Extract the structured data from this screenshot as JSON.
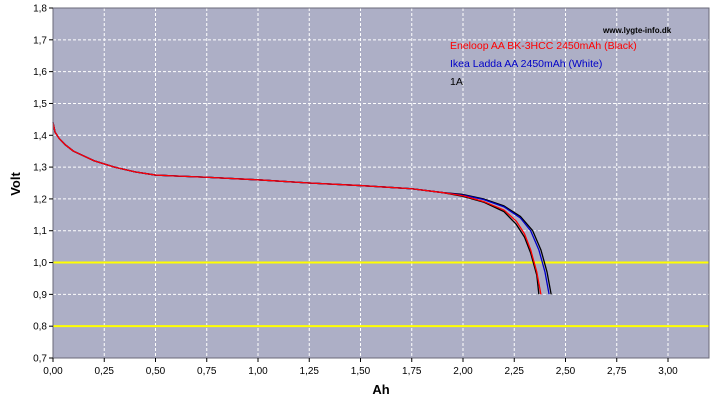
{
  "chart_data": {
    "type": "line",
    "title": "",
    "xlabel": "Ah",
    "ylabel": "Volt",
    "xlim": [
      0,
      3.2
    ],
    "ylim": [
      0.7,
      1.8
    ],
    "x_ticks": [
      "0,00",
      "0,25",
      "0,50",
      "0,75",
      "1,00",
      "1,25",
      "1,50",
      "1,75",
      "2,00",
      "2,25",
      "2,50",
      "2,75",
      "3,00"
    ],
    "y_ticks": [
      "0,7",
      "0,8",
      "0,9",
      "1,0",
      "1,1",
      "1,2",
      "1,3",
      "1,4",
      "1,5",
      "1,6",
      "1,7",
      "1,8"
    ],
    "grid": true,
    "background_color": "#adafc6",
    "grid_color": "#ffffff",
    "reference_lines": [
      {
        "y": 1.0,
        "color": "#ffff00"
      },
      {
        "y": 0.8,
        "color": "#ffff00"
      }
    ],
    "annotations": [
      "www.lygte-info.dk",
      "1A"
    ],
    "legend_position": "top-right",
    "series": [
      {
        "name": "Eneloop AA BK-3HCC 2450mAh (Black)",
        "color": "#ff0000",
        "points": [
          [
            0.0,
            1.44
          ],
          [
            0.01,
            1.41
          ],
          [
            0.03,
            1.39
          ],
          [
            0.06,
            1.37
          ],
          [
            0.1,
            1.35
          ],
          [
            0.15,
            1.335
          ],
          [
            0.2,
            1.32
          ],
          [
            0.3,
            1.3
          ],
          [
            0.4,
            1.285
          ],
          [
            0.5,
            1.275
          ],
          [
            0.6,
            1.272
          ],
          [
            0.75,
            1.268
          ],
          [
            1.0,
            1.26
          ],
          [
            1.25,
            1.25
          ],
          [
            1.5,
            1.242
          ],
          [
            1.75,
            1.232
          ],
          [
            1.9,
            1.22
          ],
          [
            2.0,
            1.21
          ],
          [
            2.1,
            1.192
          ],
          [
            2.2,
            1.165
          ],
          [
            2.26,
            1.13
          ],
          [
            2.3,
            1.09
          ],
          [
            2.33,
            1.04
          ],
          [
            2.36,
            0.97
          ],
          [
            2.38,
            0.9
          ]
        ]
      },
      {
        "name": "Ikea Ladda AA 2450mAh (White)",
        "color": "#0000c8",
        "points": [
          [
            0.0,
            1.44
          ],
          [
            0.01,
            1.41
          ],
          [
            0.03,
            1.39
          ],
          [
            0.06,
            1.37
          ],
          [
            0.1,
            1.35
          ],
          [
            0.15,
            1.335
          ],
          [
            0.2,
            1.32
          ],
          [
            0.3,
            1.3
          ],
          [
            0.4,
            1.285
          ],
          [
            0.5,
            1.275
          ],
          [
            0.6,
            1.272
          ],
          [
            0.75,
            1.268
          ],
          [
            1.0,
            1.26
          ],
          [
            1.25,
            1.25
          ],
          [
            1.5,
            1.242
          ],
          [
            1.75,
            1.232
          ],
          [
            1.9,
            1.22
          ],
          [
            2.0,
            1.212
          ],
          [
            2.1,
            1.198
          ],
          [
            2.2,
            1.175
          ],
          [
            2.28,
            1.14
          ],
          [
            2.33,
            1.1
          ],
          [
            2.37,
            1.04
          ],
          [
            2.4,
            0.97
          ],
          [
            2.42,
            0.9
          ]
        ]
      },
      {
        "name": "",
        "color": "#000000",
        "points": [
          [
            0.0,
            1.44
          ],
          [
            0.01,
            1.41
          ],
          [
            0.03,
            1.39
          ],
          [
            0.06,
            1.37
          ],
          [
            0.1,
            1.35
          ],
          [
            0.15,
            1.335
          ],
          [
            0.2,
            1.32
          ],
          [
            0.3,
            1.3
          ],
          [
            0.4,
            1.285
          ],
          [
            0.5,
            1.275
          ],
          [
            0.6,
            1.272
          ],
          [
            0.75,
            1.268
          ],
          [
            1.0,
            1.26
          ],
          [
            1.25,
            1.25
          ],
          [
            1.5,
            1.242
          ],
          [
            1.75,
            1.232
          ],
          [
            1.9,
            1.22
          ],
          [
            2.0,
            1.208
          ],
          [
            2.1,
            1.19
          ],
          [
            2.2,
            1.16
          ],
          [
            2.26,
            1.12
          ],
          [
            2.3,
            1.08
          ],
          [
            2.33,
            1.03
          ],
          [
            2.36,
            0.96
          ],
          [
            2.37,
            0.9
          ]
        ]
      },
      {
        "name": "",
        "color": "#000000",
        "points": [
          [
            0.0,
            1.44
          ],
          [
            0.01,
            1.41
          ],
          [
            0.03,
            1.39
          ],
          [
            0.06,
            1.37
          ],
          [
            0.1,
            1.35
          ],
          [
            0.15,
            1.335
          ],
          [
            0.2,
            1.32
          ],
          [
            0.3,
            1.3
          ],
          [
            0.4,
            1.285
          ],
          [
            0.5,
            1.275
          ],
          [
            0.6,
            1.272
          ],
          [
            0.75,
            1.268
          ],
          [
            1.0,
            1.26
          ],
          [
            1.25,
            1.25
          ],
          [
            1.5,
            1.242
          ],
          [
            1.75,
            1.232
          ],
          [
            1.9,
            1.22
          ],
          [
            2.0,
            1.214
          ],
          [
            2.1,
            1.2
          ],
          [
            2.2,
            1.178
          ],
          [
            2.28,
            1.145
          ],
          [
            2.34,
            1.1
          ],
          [
            2.38,
            1.04
          ],
          [
            2.41,
            0.97
          ],
          [
            2.43,
            0.9
          ]
        ]
      }
    ]
  }
}
